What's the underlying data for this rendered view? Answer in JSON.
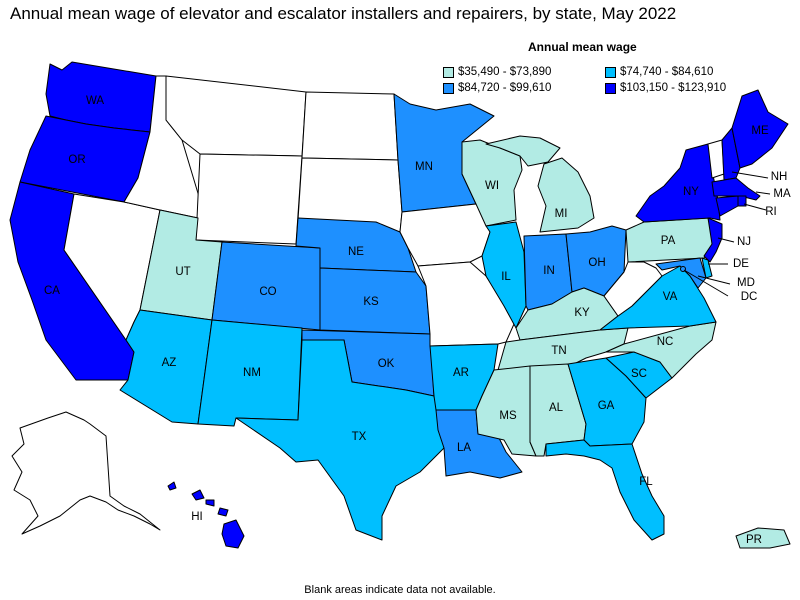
{
  "title": "Annual mean wage of elevator and escalator installers and repairers, by state, May 2022",
  "legend": {
    "title": "Annual mean wage",
    "items": [
      {
        "label": "$35,490 - $73,890",
        "color": "#b2ebe4"
      },
      {
        "label": "$74,740 - $84,610",
        "color": "#00bfff"
      },
      {
        "label": "$84,720 - $99,610",
        "color": "#1e90ff"
      },
      {
        "label": "$103,150 - $123,910",
        "color": "#0000ff"
      }
    ]
  },
  "colors": {
    "na": "#ffffff",
    "c1": "#b2ebe4",
    "c2": "#00bfff",
    "c3": "#1e90ff",
    "c4": "#0000ff"
  },
  "states": {
    "WA": "c4",
    "OR": "c4",
    "CA": "c4",
    "NV": "na",
    "ID": "na",
    "MT": "na",
    "WY": "na",
    "UT": "c1",
    "CO": "c3",
    "AZ": "c2",
    "NM": "c2",
    "ND": "na",
    "SD": "na",
    "NE": "c3",
    "KS": "c3",
    "OK": "c3",
    "TX": "c2",
    "MN": "c3",
    "IA": "na",
    "MO": "na",
    "AR": "c2",
    "LA": "c3",
    "WI": "c1",
    "IL": "c2",
    "MI": "c1",
    "IN": "c3",
    "OH": "c3",
    "KY": "c1",
    "TN": "c1",
    "MS": "c1",
    "AL": "c1",
    "GA": "c2",
    "FL": "c2",
    "SC": "c2",
    "NC": "c1",
    "VA": "c2",
    "WV": "na",
    "PA": "c1",
    "NY": "c4",
    "VT": "na",
    "NH": "c4",
    "ME": "c4",
    "MA": "c4",
    "RI": "c4",
    "CT": "c4",
    "NJ": "c4",
    "DE": "c2",
    "MD": "c3",
    "DC": "c3",
    "AK": "na",
    "HI": "c4",
    "PR": "c1"
  },
  "labels": {
    "WA": "WA",
    "OR": "OR",
    "CA": "CA",
    "UT": "UT",
    "CO": "CO",
    "AZ": "AZ",
    "NM": "NM",
    "NE": "NE",
    "KS": "KS",
    "OK": "OK",
    "TX": "TX",
    "MN": "MN",
    "AR": "AR",
    "LA": "LA",
    "WI": "WI",
    "IL": "IL",
    "MI": "MI",
    "IN": "IN",
    "OH": "OH",
    "KY": "KY",
    "TN": "TN",
    "MS": "MS",
    "AL": "AL",
    "GA": "GA",
    "FL": "FL",
    "SC": "SC",
    "NC": "NC",
    "VA": "VA",
    "PA": "PA",
    "NY": "NY",
    "ME": "ME",
    "NH": "NH",
    "MA": "MA",
    "RI": "RI",
    "NJ": "NJ",
    "DE": "DE",
    "MD": "MD",
    "DC": "DC",
    "HI": "HI",
    "PR": "PR"
  },
  "footnote": "Blank areas indicate data not available."
}
